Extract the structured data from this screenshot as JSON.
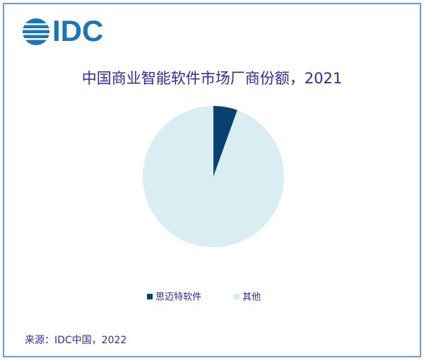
{
  "logo": "IDC",
  "chart_data": {
    "type": "pie",
    "title": "中国商业智能软件市场厂商份额，2021",
    "categories": [
      "思迈特软件",
      "其他"
    ],
    "values": [
      5.5,
      94.5
    ],
    "colors": [
      "#0b416e",
      "#d9eef3"
    ],
    "source": "来源：IDC中国，2022"
  }
}
